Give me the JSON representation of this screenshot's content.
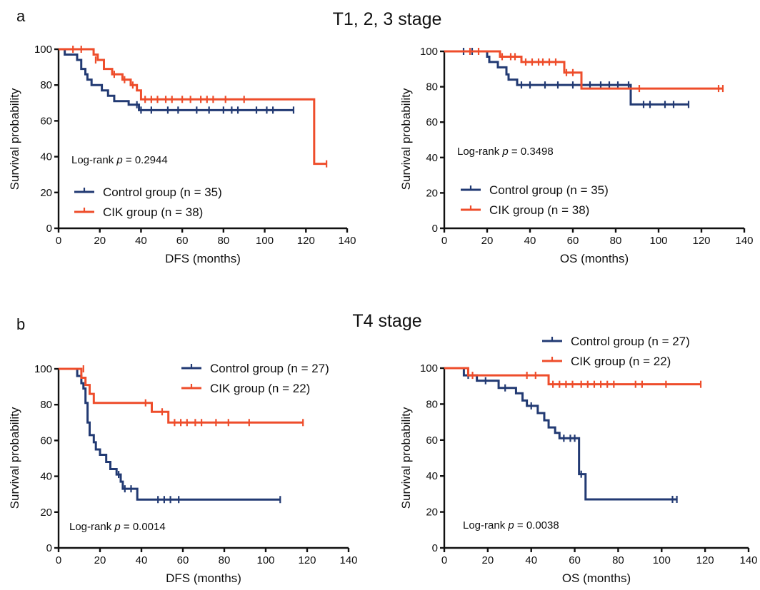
{
  "panel_labels": [
    "a",
    "b"
  ],
  "row_titles": [
    "T1, 2, 3 stage",
    "T4 stage"
  ],
  "colors": {
    "control": "#223a73",
    "cik": "#ee4d2b",
    "axis": "#111111"
  },
  "chart_data": [
    {
      "type": "line",
      "row": 0,
      "xlabel": "DFS (months)",
      "ylabel": "Survival probability",
      "xlim": [
        0,
        140
      ],
      "ylim": [
        0,
        100
      ],
      "xticks": [
        0,
        20,
        40,
        60,
        80,
        100,
        120,
        140
      ],
      "yticks": [
        0,
        20,
        40,
        60,
        80,
        100
      ],
      "pvalue": {
        "prefix": "Log-rank ",
        "p": "p",
        "rest": " = 0.2944"
      },
      "legend_position": "bottom-left",
      "series": [
        {
          "name": "Control group (n = 35)",
          "color_key": "control",
          "steps": [
            [
              0,
              100
            ],
            [
              3,
              97
            ],
            [
              9,
              94
            ],
            [
              11,
              89
            ],
            [
              13,
              86
            ],
            [
              14,
              83
            ],
            [
              16,
              80
            ],
            [
              21,
              77
            ],
            [
              24,
              74
            ],
            [
              27,
              71
            ],
            [
              34,
              69
            ],
            [
              39,
              66
            ],
            [
              114,
              66
            ]
          ],
          "censors": [
            [
              38,
              69
            ],
            [
              40,
              66
            ],
            [
              45,
              66
            ],
            [
              53,
              66
            ],
            [
              58,
              66
            ],
            [
              67,
              66
            ],
            [
              73,
              66
            ],
            [
              80,
              66
            ],
            [
              84,
              66
            ],
            [
              87,
              66
            ],
            [
              96,
              66
            ],
            [
              101,
              66
            ],
            [
              104,
              66
            ],
            [
              114,
              66
            ]
          ]
        },
        {
          "name": "CIK group (n = 38)",
          "color_key": "cik",
          "steps": [
            [
              0,
              100
            ],
            [
              17,
              97
            ],
            [
              19,
              94
            ],
            [
              22,
              89
            ],
            [
              26,
              86
            ],
            [
              31,
              83
            ],
            [
              35,
              80
            ],
            [
              38,
              77
            ],
            [
              40,
              72
            ],
            [
              124,
              72
            ],
            [
              124,
              36
            ],
            [
              130,
              36
            ]
          ],
          "censors": [
            [
              7,
              100
            ],
            [
              11,
              100
            ],
            [
              18,
              94
            ],
            [
              27,
              86
            ],
            [
              32,
              83
            ],
            [
              36,
              80
            ],
            [
              42,
              72
            ],
            [
              45,
              72
            ],
            [
              48,
              72
            ],
            [
              52,
              72
            ],
            [
              55,
              72
            ],
            [
              60,
              72
            ],
            [
              64,
              72
            ],
            [
              69,
              72
            ],
            [
              72,
              72
            ],
            [
              75,
              72
            ],
            [
              81,
              72
            ],
            [
              90,
              72
            ],
            [
              130,
              36
            ]
          ]
        }
      ]
    },
    {
      "type": "line",
      "row": 0,
      "xlabel": "OS (months)",
      "ylabel": "Survival probability",
      "xlim": [
        0,
        140
      ],
      "ylim": [
        0,
        100
      ],
      "xticks": [
        0,
        20,
        40,
        60,
        80,
        100,
        120,
        140
      ],
      "yticks": [
        0,
        20,
        40,
        60,
        80,
        100
      ],
      "pvalue": {
        "prefix": "Log-rank ",
        "p": "p",
        "rest": " = 0.3498"
      },
      "legend_position": "bottom-left",
      "series": [
        {
          "name": "Control group (n = 35)",
          "color_key": "control",
          "steps": [
            [
              0,
              100
            ],
            [
              20,
              97
            ],
            [
              21,
              94
            ],
            [
              25,
              91
            ],
            [
              29,
              87
            ],
            [
              30,
              84
            ],
            [
              34,
              81
            ],
            [
              87,
              81
            ],
            [
              87,
              70
            ],
            [
              114,
              70
            ]
          ],
          "censors": [
            [
              9,
              100
            ],
            [
              13,
              100
            ],
            [
              36,
              81
            ],
            [
              40,
              81
            ],
            [
              47,
              81
            ],
            [
              53,
              81
            ],
            [
              60,
              81
            ],
            [
              68,
              81
            ],
            [
              73,
              81
            ],
            [
              77,
              81
            ],
            [
              81,
              81
            ],
            [
              86,
              81
            ],
            [
              93,
              70
            ],
            [
              96,
              70
            ],
            [
              103,
              70
            ],
            [
              107,
              70
            ],
            [
              114,
              70
            ]
          ]
        },
        {
          "name": "CIK group (n = 38)",
          "color_key": "cik",
          "steps": [
            [
              0,
              100
            ],
            [
              26,
              97
            ],
            [
              36,
              94
            ],
            [
              56,
              88
            ],
            [
              64,
              79
            ],
            [
              130,
              79
            ]
          ],
          "censors": [
            [
              12,
              100
            ],
            [
              16,
              100
            ],
            [
              27,
              97
            ],
            [
              31,
              97
            ],
            [
              33,
              97
            ],
            [
              38,
              94
            ],
            [
              41,
              94
            ],
            [
              44,
              94
            ],
            [
              46,
              94
            ],
            [
              49,
              94
            ],
            [
              52,
              94
            ],
            [
              57,
              88
            ],
            [
              60,
              88
            ],
            [
              91,
              79
            ],
            [
              128,
              79
            ],
            [
              130,
              79
            ]
          ]
        }
      ]
    },
    {
      "type": "line",
      "row": 1,
      "xlabel": "DFS (months)",
      "ylabel": "Survival probability",
      "xlim": [
        0,
        140
      ],
      "ylim": [
        0,
        100
      ],
      "xticks": [
        0,
        20,
        40,
        60,
        80,
        100,
        120,
        140
      ],
      "yticks": [
        0,
        20,
        40,
        60,
        80,
        100
      ],
      "pvalue": {
        "prefix": "Log-rank ",
        "p": "p",
        "rest": " = 0.0014"
      },
      "legend_position": "top-right",
      "series": [
        {
          "name": "Control group (n = 27)",
          "color_key": "control",
          "steps": [
            [
              0,
              100
            ],
            [
              9,
              96
            ],
            [
              11,
              92
            ],
            [
              12,
              89
            ],
            [
              13,
              81
            ],
            [
              14,
              70
            ],
            [
              15,
              63
            ],
            [
              17,
              59
            ],
            [
              18,
              55
            ],
            [
              20,
              52
            ],
            [
              23,
              48
            ],
            [
              25,
              44
            ],
            [
              28,
              41
            ],
            [
              30,
              37
            ],
            [
              31,
              33
            ],
            [
              38,
              27
            ],
            [
              107,
              27
            ]
          ],
          "censors": [
            [
              29,
              41
            ],
            [
              32,
              33
            ],
            [
              35,
              33
            ],
            [
              48,
              27
            ],
            [
              51,
              27
            ],
            [
              54,
              27
            ],
            [
              58,
              27
            ],
            [
              107,
              27
            ]
          ]
        },
        {
          "name": "CIK group (n = 22)",
          "color_key": "cik",
          "steps": [
            [
              0,
              100
            ],
            [
              11,
              95
            ],
            [
              13,
              91
            ],
            [
              15,
              86
            ],
            [
              17,
              81
            ],
            [
              45,
              76
            ],
            [
              53,
              70
            ],
            [
              118,
              70
            ]
          ],
          "censors": [
            [
              12,
              100
            ],
            [
              42,
              81
            ],
            [
              50,
              76
            ],
            [
              56,
              70
            ],
            [
              59,
              70
            ],
            [
              62,
              70
            ],
            [
              66,
              70
            ],
            [
              69,
              70
            ],
            [
              76,
              70
            ],
            [
              82,
              70
            ],
            [
              92,
              70
            ],
            [
              118,
              70
            ]
          ]
        }
      ]
    },
    {
      "type": "line",
      "row": 1,
      "xlabel": "OS (months)",
      "ylabel": "Survival probability",
      "xlim": [
        0,
        140
      ],
      "ylim": [
        0,
        100
      ],
      "xticks": [
        0,
        20,
        40,
        60,
        80,
        100,
        120,
        140
      ],
      "yticks": [
        0,
        20,
        40,
        60,
        80,
        100
      ],
      "pvalue": {
        "prefix": "Log-rank ",
        "p": "p",
        "rest": " = 0.0038"
      },
      "legend_position": "top-right",
      "series": [
        {
          "name": "Control group (n = 27)",
          "color_key": "control",
          "steps": [
            [
              0,
              100
            ],
            [
              9,
              96
            ],
            [
              15,
              93
            ],
            [
              25,
              89
            ],
            [
              33,
              86
            ],
            [
              36,
              82
            ],
            [
              38,
              79
            ],
            [
              43,
              75
            ],
            [
              46,
              71
            ],
            [
              48,
              67
            ],
            [
              51,
              64
            ],
            [
              53,
              61
            ],
            [
              62,
              41
            ],
            [
              65,
              27
            ],
            [
              107,
              27
            ]
          ],
          "censors": [
            [
              11,
              96
            ],
            [
              19,
              93
            ],
            [
              28,
              89
            ],
            [
              40,
              79
            ],
            [
              55,
              61
            ],
            [
              58,
              61
            ],
            [
              60,
              61
            ],
            [
              63,
              41
            ],
            [
              105,
              27
            ],
            [
              107,
              27
            ]
          ]
        },
        {
          "name": "CIK group (n = 22)",
          "color_key": "cik",
          "steps": [
            [
              0,
              100
            ],
            [
              11,
              96
            ],
            [
              48,
              91
            ],
            [
              118,
              91
            ]
          ],
          "censors": [
            [
              13,
              96
            ],
            [
              38,
              96
            ],
            [
              42,
              96
            ],
            [
              50,
              91
            ],
            [
              53,
              91
            ],
            [
              56,
              91
            ],
            [
              59,
              91
            ],
            [
              63,
              91
            ],
            [
              66,
              91
            ],
            [
              69,
              91
            ],
            [
              72,
              91
            ],
            [
              75,
              91
            ],
            [
              78,
              91
            ],
            [
              88,
              91
            ],
            [
              91,
              91
            ],
            [
              102,
              91
            ],
            [
              118,
              91
            ]
          ]
        }
      ]
    }
  ]
}
